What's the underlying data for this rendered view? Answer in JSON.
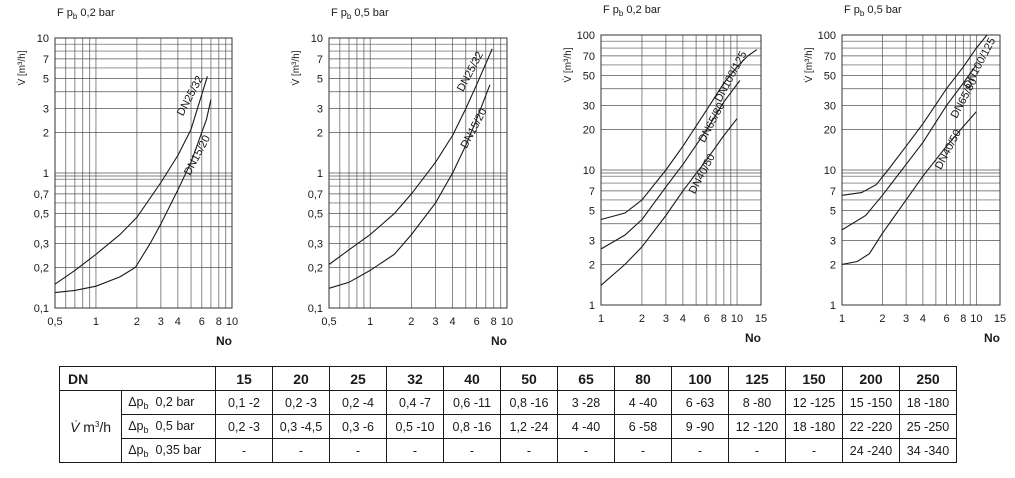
{
  "chart_data": [
    {
      "type": "line",
      "title": "F p_b 0,2 bar",
      "xlabel": "No",
      "ylabel": "V̇ [m³/h]",
      "xscale": "log",
      "yscale": "log",
      "xlim": [
        0.5,
        10
      ],
      "ylim": [
        0.1,
        10
      ],
      "xticks": [
        0.5,
        1,
        2,
        3,
        4,
        6,
        8,
        10
      ],
      "xtick_labels": [
        "0,5",
        "1",
        "2",
        "3",
        "4",
        "6",
        "8",
        "10"
      ],
      "yticks": [
        0.1,
        0.2,
        0.3,
        0.5,
        0.7,
        1,
        2,
        3,
        5,
        7,
        10
      ],
      "ytick_labels": [
        "0,1",
        "0,2",
        "0,3",
        "0,5",
        "0,7",
        "1",
        "2",
        "3",
        "5",
        "7",
        "10"
      ],
      "series": [
        {
          "name": "DN25/32",
          "x": [
            0.5,
            0.7,
            1,
            1.5,
            2,
            3,
            4,
            5,
            6.6
          ],
          "y": [
            0.15,
            0.19,
            0.25,
            0.35,
            0.47,
            0.85,
            1.35,
            2.1,
            5.2
          ]
        },
        {
          "name": "DN15/20",
          "x": [
            0.5,
            0.7,
            1,
            1.5,
            1.95,
            2.5,
            3,
            4,
            5,
            6.5,
            7
          ],
          "y": [
            0.13,
            0.135,
            0.145,
            0.17,
            0.2,
            0.3,
            0.42,
            0.75,
            1.2,
            2.5,
            3.5
          ]
        }
      ]
    },
    {
      "type": "line",
      "title": "F p_b 0,5 bar",
      "xlabel": "No",
      "ylabel": "V̇ [m³/h]",
      "xscale": "log",
      "yscale": "log",
      "xlim": [
        0.5,
        10
      ],
      "ylim": [
        0.1,
        10
      ],
      "xticks": [
        0.5,
        1,
        2,
        3,
        4,
        6,
        8,
        10
      ],
      "xtick_labels": [
        "0,5",
        "1",
        "2",
        "3",
        "4",
        "6",
        "8",
        "10"
      ],
      "yticks": [
        0.1,
        0.2,
        0.3,
        0.5,
        0.7,
        1,
        2,
        3,
        5,
        7,
        10
      ],
      "ytick_labels": [
        "0,1",
        "0,2",
        "0,3",
        "0,5",
        "0,7",
        "1",
        "2",
        "3",
        "5",
        "7",
        "10"
      ],
      "series": [
        {
          "name": "DN25/32",
          "x": [
            0.5,
            0.7,
            1,
            1.5,
            2,
            3,
            4,
            5,
            6,
            7.8
          ],
          "y": [
            0.21,
            0.27,
            0.35,
            0.5,
            0.7,
            1.2,
            1.9,
            3,
            4.5,
            8.3
          ]
        },
        {
          "name": "DN15/20",
          "x": [
            0.5,
            0.7,
            1,
            1.5,
            2,
            3,
            4,
            5,
            6,
            7.5
          ],
          "y": [
            0.14,
            0.155,
            0.19,
            0.25,
            0.35,
            0.6,
            1,
            1.6,
            2.5,
            4.5
          ]
        }
      ]
    },
    {
      "type": "line",
      "title": "F p_b 0,2 bar",
      "xlabel": "No",
      "ylabel": "V̇ [m³/h]",
      "xscale": "log",
      "yscale": "log",
      "xlim": [
        1,
        15
      ],
      "ylim": [
        1,
        100
      ],
      "xticks": [
        1,
        2,
        3,
        4,
        6,
        8,
        10,
        15
      ],
      "xtick_labels": [
        "1",
        "2",
        "3",
        "4",
        "6",
        "8",
        "10",
        "15"
      ],
      "yticks": [
        1,
        2,
        3,
        5,
        7,
        10,
        20,
        30,
        50,
        70,
        100
      ],
      "ytick_labels": [
        "1",
        "2",
        "3",
        "5",
        "7",
        "10",
        "20",
        "30",
        "50",
        "70",
        "100"
      ],
      "series": [
        {
          "name": "DN100/125",
          "x": [
            1,
            1.5,
            2,
            3,
            4,
            6,
            8,
            10,
            12,
            14
          ],
          "y": [
            4.3,
            4.8,
            6,
            10,
            15,
            28,
            44,
            58,
            70,
            78
          ]
        },
        {
          "name": "DN65/80",
          "x": [
            1,
            1.5,
            2,
            3,
            4,
            6,
            8,
            10.5
          ],
          "y": [
            2.6,
            3.3,
            4.3,
            7.5,
            11,
            20,
            32,
            46
          ]
        },
        {
          "name": "DN40/50",
          "x": [
            1,
            1.5,
            2,
            3,
            4,
            6,
            8,
            10
          ],
          "y": [
            1.4,
            2,
            2.7,
            4.6,
            7,
            12,
            18,
            24
          ]
        }
      ]
    },
    {
      "type": "line",
      "title": "F p_b 0,5 bar",
      "xlabel": "No",
      "ylabel": "V̇ [m³/h]",
      "xscale": "log",
      "yscale": "log",
      "xlim": [
        1,
        15
      ],
      "ylim": [
        1,
        100
      ],
      "xticks": [
        1,
        2,
        3,
        4,
        6,
        8,
        10,
        15
      ],
      "xtick_labels": [
        "1",
        "2",
        "3",
        "4",
        "6",
        "8",
        "10",
        "15"
      ],
      "yticks": [
        1,
        2,
        3,
        5,
        7,
        10,
        20,
        30,
        50,
        70,
        100
      ],
      "ytick_labels": [
        "1",
        "2",
        "3",
        "5",
        "7",
        "10",
        "20",
        "30",
        "50",
        "70",
        "100"
      ],
      "series": [
        {
          "name": "DN100/125",
          "x": [
            1,
            1.4,
            1.8,
            2.2,
            3,
            4,
            6,
            8,
            10,
            12
          ],
          "y": [
            6.5,
            6.8,
            7.8,
            10,
            15,
            22,
            40,
            58,
            80,
            100
          ]
        },
        {
          "name": "DN65/80",
          "x": [
            1,
            1.5,
            2,
            3,
            4,
            6,
            8,
            10
          ],
          "y": [
            3.6,
            4.6,
            6.5,
            11,
            16,
            30,
            44,
            60
          ]
        },
        {
          "name": "DN40/50",
          "x": [
            1,
            1.3,
            1.6,
            2,
            3,
            4,
            6,
            8,
            10
          ],
          "y": [
            2,
            2.1,
            2.4,
            3.4,
            6,
            9,
            15,
            21,
            27
          ]
        }
      ]
    }
  ],
  "table": {
    "header_label": "DN",
    "dn_values": [
      "15",
      "20",
      "25",
      "32",
      "40",
      "50",
      "65",
      "80",
      "100",
      "125",
      "150",
      "200",
      "250"
    ],
    "flow_symbol": "V̇",
    "flow_unit_text": "m",
    "flow_unit_exp": "3",
    "flow_unit_tail": "/h",
    "rows": [
      {
        "dp": "Δp",
        "dp_sub": "b",
        "pressure": "0,2 bar",
        "values": [
          "0,1 -2",
          "0,2 -3",
          "0,2 -4",
          "0,4 -7",
          "0,6 -11",
          "0,8 -16",
          "3 -28",
          "4 -40",
          "6 -63",
          "8 -80",
          "12 -125",
          "15 -150",
          "18 -180"
        ]
      },
      {
        "dp": "Δp",
        "dp_sub": "b",
        "pressure": "0,5 bar",
        "values": [
          "0,2 -3",
          "0,3 -4,5",
          "0,3 -6",
          "0,5 -10",
          "0,8 -16",
          "1,2 -24",
          "4 -40",
          "6 -58",
          "9 -90",
          "12 -120",
          "18 -180",
          "22 -220",
          "25 -250"
        ]
      },
      {
        "dp": "Δp",
        "dp_sub": "b",
        "pressure": "0,35 bar",
        "values": [
          "-",
          "-",
          "-",
          "-",
          "-",
          "-",
          "-",
          "-",
          "-",
          "-",
          "-",
          "24 -240",
          "34 -340"
        ]
      }
    ]
  }
}
